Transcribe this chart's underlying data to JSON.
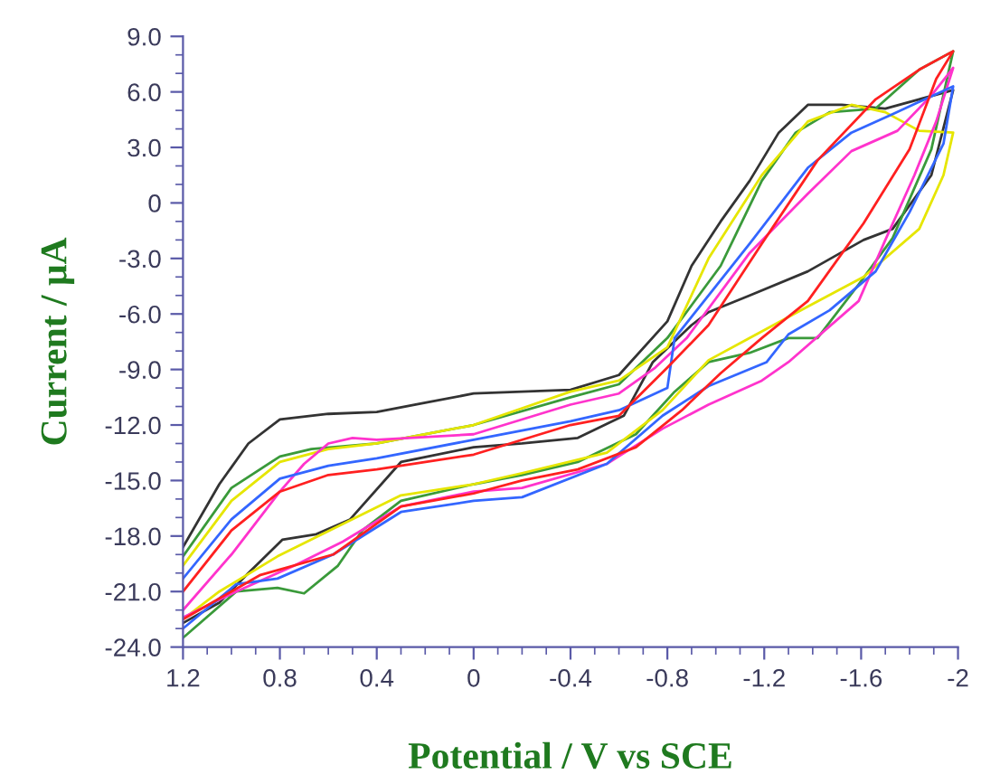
{
  "chart_data": {
    "type": "line",
    "xlabel": "Potential / V vs SCE",
    "ylabel": "Current / μA",
    "xlim": [
      1.2,
      -2
    ],
    "ylim": [
      -24,
      9
    ],
    "xticks": [
      1.2,
      0.8,
      0.4,
      0,
      -0.4,
      -0.8,
      -1.2,
      -1.6,
      -2
    ],
    "yticks": [
      {
        "value": 9,
        "label": "9.0"
      },
      {
        "value": 6,
        "label": "6.0"
      },
      {
        "value": 3,
        "label": "3.0"
      },
      0,
      {
        "value": -3,
        "label": "-3.0"
      },
      {
        "value": -6,
        "label": "-6.0"
      },
      {
        "value": -9,
        "label": "-9.0"
      },
      {
        "value": -12,
        "label": "-12.0"
      },
      {
        "value": -15,
        "label": "-15.0"
      },
      {
        "value": -18,
        "label": "-18.0"
      },
      {
        "value": -21,
        "label": "-21.0"
      },
      {
        "value": -24,
        "label": "-24.0"
      }
    ],
    "marker": "none",
    "line_style": "solid",
    "series": [
      {
        "color": "#333333",
        "x": [
          1.2,
          1.05,
          0.93,
          0.8,
          0.6,
          0.4,
          0.2,
          0,
          -0.4,
          -0.6,
          -0.8,
          -0.9,
          -1.02,
          -1.14,
          -1.26,
          -1.38,
          -1.52,
          -1.7,
          -1.98,
          -1.89,
          -1.73,
          -1.61,
          -1.38,
          -1.14,
          -0.97,
          -0.9,
          -0.74,
          -0.62,
          -0.43,
          -0.2,
          0,
          0.3,
          0.51,
          0.65,
          0.79,
          0.93,
          1.05,
          1.2
        ],
        "values": [
          -18.6,
          -15.2,
          -13.0,
          -11.7,
          -11.4,
          -11.3,
          -10.8,
          -10.3,
          -10.1,
          -9.3,
          -6.4,
          -3.4,
          -1.0,
          1.2,
          3.8,
          5.3,
          5.3,
          5.1,
          6.1,
          1.5,
          -1.4,
          -2.0,
          -3.7,
          -5.0,
          -5.9,
          -6.6,
          -8.6,
          -11.5,
          -12.7,
          -13.0,
          -13.2,
          -14.0,
          -17.1,
          -17.9,
          -18.2,
          -20.0,
          -21.6,
          -22.7
        ]
      },
      {
        "color": "#3a9a3a",
        "x": [
          1.2,
          1.0,
          0.8,
          0.67,
          0.4,
          0,
          -0.4,
          -0.6,
          -0.8,
          -1.02,
          -1.19,
          -1.33,
          -1.47,
          -1.66,
          -1.84,
          -1.98,
          -1.89,
          -1.73,
          -1.59,
          -1.42,
          -1.3,
          -1.14,
          -0.97,
          -0.83,
          -0.67,
          -0.43,
          -0.2,
          0,
          0.3,
          0.46,
          0.56,
          0.7,
          0.81,
          0.98,
          1.2
        ],
        "values": [
          -19.1,
          -15.4,
          -13.7,
          -13.3,
          -13.0,
          -12.0,
          -10.5,
          -9.8,
          -7.3,
          -3.4,
          1.2,
          3.8,
          4.9,
          5.1,
          7.2,
          8.2,
          2.9,
          -1.9,
          -4.4,
          -7.3,
          -7.3,
          -8.1,
          -8.6,
          -10.2,
          -12.5,
          -14.0,
          -14.7,
          -15.2,
          -16.1,
          -17.7,
          -19.6,
          -21.1,
          -20.8,
          -21.0,
          -23.5
        ]
      },
      {
        "color": "#e6e600",
        "x": [
          1.2,
          1.0,
          0.8,
          0.6,
          0.4,
          0,
          -0.4,
          -0.6,
          -0.8,
          -0.97,
          -1.19,
          -1.38,
          -1.56,
          -1.7,
          -1.84,
          -1.98,
          -1.94,
          -1.84,
          -1.61,
          -1.38,
          -1.14,
          -0.97,
          -0.78,
          -0.55,
          -0.2,
          0,
          0.3,
          0.58,
          0.81,
          1.05,
          1.2
        ],
        "values": [
          -19.6,
          -16.1,
          -14.0,
          -13.3,
          -13.0,
          -12.0,
          -10.2,
          -9.6,
          -7.8,
          -3.0,
          1.5,
          4.4,
          5.3,
          4.9,
          3.9,
          3.8,
          1.5,
          -1.4,
          -4.0,
          -5.6,
          -7.3,
          -8.5,
          -11.2,
          -13.5,
          -14.6,
          -15.2,
          -15.8,
          -17.6,
          -19.1,
          -21.0,
          -22.5
        ]
      },
      {
        "color": "#ff33cc",
        "x": [
          1.2,
          1.0,
          0.8,
          0.7,
          0.6,
          0.5,
          0.4,
          0,
          -0.4,
          -0.6,
          -0.75,
          -0.88,
          -1.14,
          -1.38,
          -1.56,
          -1.75,
          -1.89,
          -1.98,
          -1.91,
          -1.82,
          -1.7,
          -1.59,
          -1.3,
          -1.19,
          -0.97,
          -0.78,
          -0.55,
          -0.2,
          0,
          0.3,
          0.54,
          0.74,
          0.98,
          1.2
        ],
        "values": [
          -22.0,
          -19.0,
          -15.6,
          -14.1,
          -13.0,
          -12.7,
          -12.8,
          -12.5,
          -10.9,
          -10.3,
          -8.9,
          -7.3,
          -2.7,
          0.5,
          2.8,
          3.9,
          5.8,
          7.3,
          4.4,
          1.5,
          -2.0,
          -5.3,
          -8.6,
          -9.6,
          -10.9,
          -12.2,
          -14.1,
          -15.4,
          -15.6,
          -16.4,
          -18.3,
          -19.6,
          -21.0,
          -22.4
        ]
      },
      {
        "color": "#3366ff",
        "x": [
          1.2,
          1.0,
          0.8,
          0.6,
          0.4,
          0,
          -0.4,
          -0.6,
          -0.8,
          -0.83,
          -1.14,
          -1.38,
          -1.56,
          -1.73,
          -1.98,
          -1.94,
          -1.8,
          -1.66,
          -1.47,
          -1.3,
          -1.21,
          -0.97,
          -0.78,
          -0.55,
          -0.2,
          0,
          0.3,
          0.58,
          0.81,
          0.98,
          1.2
        ],
        "values": [
          -20.3,
          -17.1,
          -14.9,
          -14.2,
          -13.8,
          -12.8,
          -11.8,
          -11.2,
          -10.0,
          -7.3,
          -2.2,
          1.9,
          3.8,
          4.8,
          6.3,
          3.2,
          -0.5,
          -3.7,
          -5.8,
          -7.1,
          -8.6,
          -9.9,
          -11.5,
          -14.1,
          -15.9,
          -16.1,
          -16.7,
          -19.0,
          -20.3,
          -20.6,
          -23.0
        ]
      },
      {
        "color": "#ff2020",
        "x": [
          1.2,
          1.0,
          0.8,
          0.6,
          0.4,
          0,
          -0.4,
          -0.6,
          -0.8,
          -0.97,
          -1.19,
          -1.42,
          -1.66,
          -1.84,
          -1.98,
          -1.91,
          -1.8,
          -1.61,
          -1.38,
          -1.19,
          -1.02,
          -0.86,
          -0.67,
          -0.43,
          -0.2,
          0,
          0.3,
          0.58,
          0.88,
          1.2
        ],
        "values": [
          -21.0,
          -17.7,
          -15.6,
          -14.7,
          -14.4,
          -13.6,
          -12.0,
          -11.5,
          -8.9,
          -6.6,
          -2.2,
          2.3,
          5.6,
          7.2,
          8.2,
          6.7,
          2.9,
          -1.1,
          -5.3,
          -7.3,
          -9.2,
          -11.2,
          -13.2,
          -14.4,
          -15.0,
          -15.7,
          -16.4,
          -19.0,
          -20.1,
          -22.5
        ]
      }
    ]
  }
}
